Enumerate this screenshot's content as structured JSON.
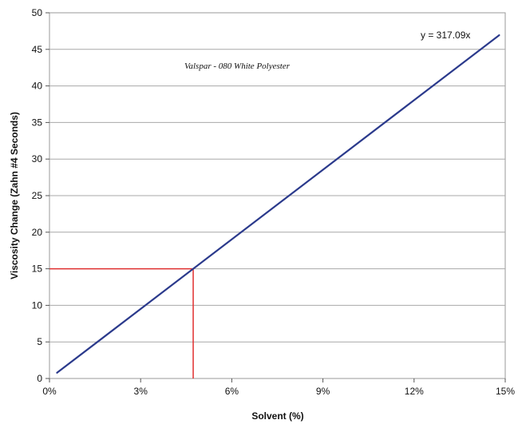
{
  "chart_data": {
    "type": "line",
    "xlabel": "Solvent (%)",
    "ylabel": "Viscosity Change (Zahn #4 Seconds)",
    "annotation": "Valspar - 080 White Polyester",
    "equation": "y = 317.09x",
    "xlim": [
      0,
      0.15
    ],
    "ylim": [
      0,
      50
    ],
    "x_ticks": [
      0,
      0.03,
      0.06,
      0.09,
      0.12,
      0.15
    ],
    "x_tick_labels": [
      "0%",
      "3%",
      "6%",
      "9%",
      "12%",
      "15%"
    ],
    "y_ticks": [
      0,
      5,
      10,
      15,
      20,
      25,
      30,
      35,
      40,
      45,
      50
    ],
    "y_tick_labels": [
      "0",
      "5",
      "10",
      "15",
      "20",
      "25",
      "30",
      "35",
      "40",
      "45",
      "50"
    ],
    "grid": "horizontal",
    "series": [
      {
        "color": "#2b3a8c",
        "x": [
          0.0025,
          0.148
        ],
        "y": [
          0.79,
          46.93
        ]
      }
    ],
    "reference_lines": {
      "color": "#e03030",
      "x": 0.0473,
      "y": 15
    }
  }
}
